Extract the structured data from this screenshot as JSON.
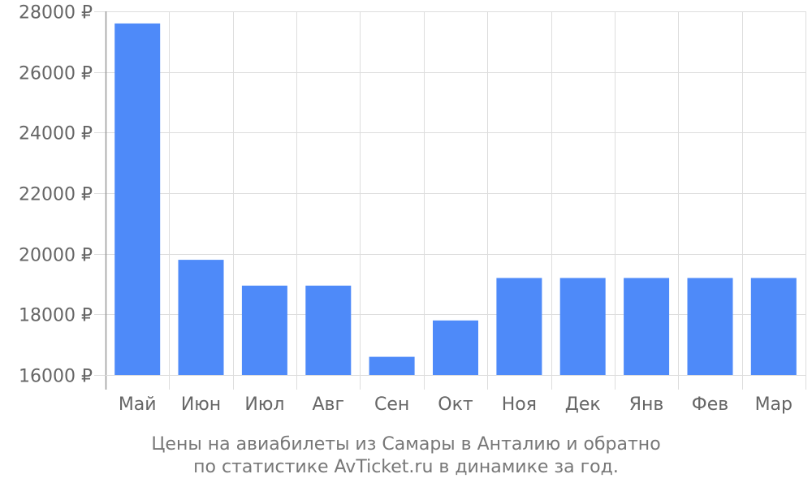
{
  "chart_data": {
    "type": "bar",
    "categories": [
      "Май",
      "Июн",
      "Июл",
      "Авг",
      "Сен",
      "Окт",
      "Ноя",
      "Дек",
      "Янв",
      "Фев",
      "Мар"
    ],
    "values": [
      27600,
      19800,
      18950,
      18950,
      16600,
      17800,
      19200,
      19200,
      19200,
      19200,
      19200
    ],
    "yticks": [
      16000,
      18000,
      20000,
      22000,
      24000,
      26000,
      28000
    ],
    "ytick_labels": [
      "16000 ₽",
      "18000 ₽",
      "20000 ₽",
      "22000 ₽",
      "24000 ₽",
      "26000 ₽",
      "28000 ₽"
    ],
    "ylim": [
      16000,
      28000
    ],
    "grid": true,
    "bar_color": "#4e8af9",
    "grid_color": "#dddddd",
    "axis_color": "#999999"
  },
  "caption": {
    "line1": "Цены на авиабилеты из Самары в Анталию и обратно",
    "line2": "по статистике AvTicket.ru в динамике за год."
  }
}
